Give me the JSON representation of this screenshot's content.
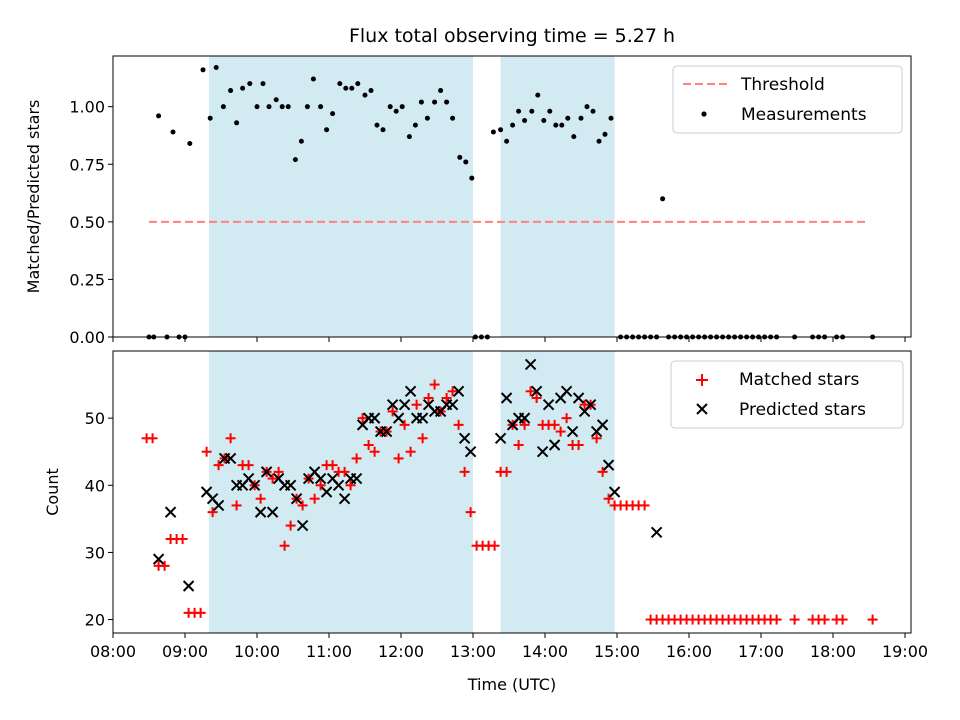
{
  "figure": {
    "title": "Flux total observing time = 5.27 h"
  },
  "chart_data": [
    {
      "type": "scatter",
      "title": "Flux total observing time = 5.27 h",
      "xlabel": "",
      "ylabel": "Matched/Predicted stars",
      "xlim": [
        "08:00",
        "19:05"
      ],
      "ylim": [
        0.0,
        1.22
      ],
      "yticks": [
        "0.00",
        "0.25",
        "0.50",
        "0.75",
        "1.00"
      ],
      "shaded_intervals": [
        [
          "09:20",
          "13:00"
        ],
        [
          "13:23",
          "14:58"
        ]
      ],
      "shade_color": "#add8e6",
      "legend_position": "top-right",
      "series": [
        {
          "name": "Threshold",
          "kind": "dashed-line",
          "color": "#ff8080",
          "x": [
            "08:30",
            "18:30"
          ],
          "y": [
            0.5,
            0.5
          ]
        },
        {
          "name": "Measurements",
          "kind": "dot",
          "color": "#000000",
          "x": [
            "08:30",
            "08:34",
            "08:38",
            "08:45",
            "08:50",
            "08:55",
            "09:00",
            "09:04",
            "09:15",
            "09:21",
            "09:26",
            "09:32",
            "09:38",
            "09:43",
            "09:48",
            "09:54",
            "10:00",
            "10:05",
            "10:10",
            "10:16",
            "10:21",
            "10:26",
            "10:32",
            "10:37",
            "10:42",
            "10:47",
            "10:53",
            "10:58",
            "11:03",
            "11:09",
            "11:14",
            "11:19",
            "11:24",
            "11:30",
            "11:35",
            "11:40",
            "11:45",
            "11:51",
            "11:56",
            "12:01",
            "12:07",
            "12:12",
            "12:17",
            "12:22",
            "12:28",
            "12:33",
            "12:38",
            "12:43",
            "12:49",
            "12:54",
            "12:59",
            "13:02",
            "13:07",
            "13:12",
            "13:17",
            "13:23",
            "13:28",
            "13:33",
            "13:38",
            "13:43",
            "13:49",
            "13:54",
            "13:59",
            "14:04",
            "14:09",
            "14:14",
            "14:19",
            "14:24",
            "14:30",
            "14:35",
            "14:40",
            "14:45",
            "14:50",
            "14:55",
            "15:03",
            "15:08",
            "15:13",
            "15:18",
            "15:23",
            "15:28",
            "15:33",
            "15:38",
            "15:43",
            "15:48",
            "15:53",
            "15:58",
            "16:03",
            "16:08",
            "16:13",
            "16:18",
            "16:23",
            "16:28",
            "16:33",
            "16:38",
            "16:43",
            "16:48",
            "16:53",
            "16:58",
            "17:03",
            "17:08",
            "17:13",
            "17:28",
            "17:43",
            "17:48",
            "17:53",
            "18:03",
            "18:08",
            "18:33"
          ],
          "y": [
            0.0,
            0.0,
            0.96,
            0.0,
            0.89,
            0.0,
            0.0,
            0.84,
            1.16,
            0.95,
            1.17,
            1.0,
            1.07,
            0.93,
            1.08,
            1.1,
            1.0,
            1.1,
            1.0,
            1.03,
            1.0,
            1.0,
            0.77,
            0.85,
            1.0,
            1.12,
            1.0,
            0.9,
            0.97,
            1.1,
            1.08,
            1.08,
            1.1,
            1.05,
            1.07,
            0.92,
            0.9,
            1.0,
            0.98,
            1.0,
            0.87,
            0.92,
            1.02,
            0.95,
            1.02,
            1.07,
            1.02,
            0.95,
            0.78,
            0.76,
            0.69,
            0.0,
            0.0,
            0.0,
            0.89,
            0.9,
            0.85,
            0.92,
            0.98,
            0.94,
            0.98,
            1.05,
            0.94,
            0.98,
            0.92,
            0.92,
            0.95,
            0.87,
            0.95,
            1.0,
            0.98,
            0.85,
            0.88,
            0.95,
            0.0,
            0.0,
            0.0,
            0.0,
            0.0,
            0.0,
            0.0,
            0.6,
            0.0,
            0.0,
            0.0,
            0.0,
            0.0,
            0.0,
            0.0,
            0.0,
            0.0,
            0.0,
            0.0,
            0.0,
            0.0,
            0.0,
            0.0,
            0.0,
            0.0,
            0.0,
            0.0,
            0.0,
            0.0,
            0.0,
            0.0,
            0.0,
            0.0,
            0.0
          ]
        }
      ]
    },
    {
      "type": "scatter",
      "title": "",
      "xlabel": "Time (UTC)",
      "ylabel": "Count",
      "xlim": [
        "08:00",
        "19:05"
      ],
      "ylim": [
        18,
        60
      ],
      "xticks": [
        "08:00",
        "09:00",
        "10:00",
        "11:00",
        "12:00",
        "13:00",
        "14:00",
        "15:00",
        "16:00",
        "17:00",
        "18:00",
        "19:00"
      ],
      "yticks": [
        "20",
        "30",
        "40",
        "50"
      ],
      "shaded_intervals": [
        [
          "09:20",
          "13:00"
        ],
        [
          "13:23",
          "14:58"
        ]
      ],
      "shade_color": "#add8e6",
      "legend_position": "top-right",
      "series": [
        {
          "name": "Matched stars",
          "kind": "plus",
          "color": "#ff0000",
          "x": [
            "08:28",
            "08:33",
            "08:38",
            "08:43",
            "08:48",
            "08:53",
            "08:58",
            "09:03",
            "09:08",
            "09:13",
            "09:18",
            "09:23",
            "09:28",
            "09:33",
            "09:38",
            "09:43",
            "09:48",
            "09:53",
            "09:58",
            "10:03",
            "10:08",
            "10:13",
            "10:18",
            "10:23",
            "10:28",
            "10:33",
            "10:38",
            "10:43",
            "10:48",
            "10:53",
            "10:58",
            "11:03",
            "11:08",
            "11:13",
            "11:18",
            "11:23",
            "11:28",
            "11:33",
            "11:38",
            "11:43",
            "11:48",
            "11:53",
            "11:58",
            "12:03",
            "12:08",
            "12:13",
            "12:18",
            "12:23",
            "12:28",
            "12:33",
            "12:38",
            "12:43",
            "12:48",
            "12:53",
            "12:58",
            "13:03",
            "13:08",
            "13:13",
            "13:18",
            "13:23",
            "13:28",
            "13:33",
            "13:38",
            "13:43",
            "13:48",
            "13:53",
            "13:58",
            "14:03",
            "14:08",
            "14:13",
            "14:18",
            "14:23",
            "14:28",
            "14:33",
            "14:38",
            "14:43",
            "14:48",
            "14:53",
            "14:58",
            "15:03",
            "15:08",
            "15:13",
            "15:18",
            "15:23",
            "15:28",
            "15:33",
            "15:38",
            "15:43",
            "15:48",
            "15:53",
            "15:58",
            "16:03",
            "16:08",
            "16:13",
            "16:18",
            "16:23",
            "16:28",
            "16:33",
            "16:38",
            "16:43",
            "16:48",
            "16:53",
            "16:58",
            "17:03",
            "17:08",
            "17:13",
            "17:28",
            "17:43",
            "17:48",
            "17:53",
            "18:03",
            "18:08",
            "18:33"
          ],
          "y": [
            47,
            47,
            28,
            28,
            32,
            32,
            32,
            21,
            21,
            21,
            45,
            36,
            43,
            44,
            47,
            37,
            43,
            43,
            40,
            38,
            42,
            41,
            42,
            31,
            34,
            38,
            37,
            41,
            38,
            40,
            43,
            43,
            42,
            42,
            40,
            44,
            50,
            46,
            45,
            48,
            48,
            51,
            44,
            49,
            45,
            52,
            47,
            53,
            55,
            51,
            53,
            54,
            49,
            42,
            36,
            31,
            31,
            31,
            31,
            42,
            42,
            49,
            46,
            49,
            54,
            53,
            49,
            49,
            49,
            48,
            50,
            46,
            46,
            52,
            52,
            47,
            42,
            38,
            37,
            37,
            37,
            37,
            37,
            37,
            20,
            20,
            20,
            20,
            20,
            20,
            20,
            20,
            20,
            20,
            20,
            20,
            20,
            20,
            20,
            20,
            20,
            20,
            20,
            20,
            20,
            20,
            20,
            20,
            20,
            20,
            20,
            20,
            20
          ]
        },
        {
          "name": "Predicted stars",
          "kind": "x",
          "color": "#000000",
          "x": [
            "08:38",
            "08:48",
            "09:03",
            "09:18",
            "09:23",
            "09:28",
            "09:33",
            "09:38",
            "09:43",
            "09:48",
            "09:53",
            "09:58",
            "10:03",
            "10:08",
            "10:13",
            "10:18",
            "10:23",
            "10:28",
            "10:33",
            "10:38",
            "10:43",
            "10:48",
            "10:53",
            "10:58",
            "11:03",
            "11:08",
            "11:13",
            "11:18",
            "11:23",
            "11:28",
            "11:33",
            "11:38",
            "11:43",
            "11:48",
            "11:53",
            "11:58",
            "12:03",
            "12:08",
            "12:13",
            "12:18",
            "12:23",
            "12:28",
            "12:33",
            "12:38",
            "12:43",
            "12:48",
            "12:53",
            "12:58",
            "13:23",
            "13:28",
            "13:33",
            "13:38",
            "13:43",
            "13:48",
            "13:53",
            "13:58",
            "14:03",
            "14:08",
            "14:13",
            "14:18",
            "14:23",
            "14:28",
            "14:33",
            "14:38",
            "14:43",
            "14:48",
            "14:53",
            "14:58",
            "15:33"
          ],
          "y": [
            29,
            36,
            25,
            39,
            38,
            37,
            44,
            44,
            40,
            40,
            41,
            40,
            36,
            42,
            36,
            41,
            40,
            40,
            38,
            34,
            41,
            42,
            41,
            39,
            41,
            40,
            38,
            41,
            41,
            49,
            50,
            50,
            48,
            48,
            52,
            50,
            52,
            54,
            50,
            50,
            52,
            51,
            51,
            52,
            52,
            54,
            47,
            45,
            47,
            53,
            49,
            50,
            50,
            58,
            54,
            45,
            52,
            46,
            53,
            54,
            48,
            53,
            51,
            52,
            48,
            49,
            43,
            39,
            33
          ]
        }
      ]
    }
  ]
}
